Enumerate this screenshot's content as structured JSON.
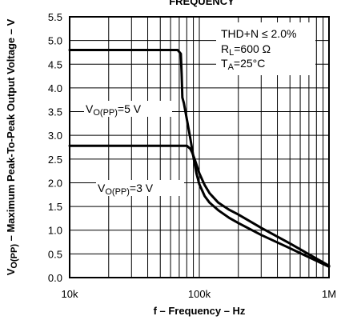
{
  "chart_data": {
    "type": "line",
    "title": "FREQUENCY",
    "xlabel": "f – Frequency – Hz",
    "ylabel_main": "V",
    "ylabel_sub": "O(PP)",
    "ylabel_rest": " – Maximum Peak-To-Peak Output Voltage – V",
    "x_scale": "log",
    "xlim": [
      10000,
      1000000
    ],
    "ylim": [
      0,
      5.5
    ],
    "x_ticks": [
      {
        "value": 10000,
        "label": "10k"
      },
      {
        "value": 100000,
        "label": "100k"
      },
      {
        "value": 1000000,
        "label": "1M"
      }
    ],
    "y_ticks": [
      {
        "value": 0.0,
        "label": "0.0"
      },
      {
        "value": 0.5,
        "label": "0.5"
      },
      {
        "value": 1.0,
        "label": "1.0"
      },
      {
        "value": 1.5,
        "label": "1.5"
      },
      {
        "value": 2.0,
        "label": "2.0"
      },
      {
        "value": 2.5,
        "label": "2.5"
      },
      {
        "value": 3.0,
        "label": "3.0"
      },
      {
        "value": 3.5,
        "label": "3.5"
      },
      {
        "value": 4.0,
        "label": "4.0"
      },
      {
        "value": 4.5,
        "label": "4.5"
      },
      {
        "value": 5.0,
        "label": "5.0"
      },
      {
        "value": 5.5,
        "label": "5.5"
      }
    ],
    "grid": true,
    "series": [
      {
        "name": "5 V",
        "label_main": "V",
        "label_sub": "O(PP)",
        "label_rest": "=5 V",
        "x": [
          10000,
          50000,
          68000,
          72000,
          73000,
          74000,
          76000,
          80000,
          85000,
          90000,
          95000,
          100000,
          110000,
          120000,
          140000,
          170000,
          200000,
          300000,
          500000,
          1000000
        ],
        "y": [
          4.8,
          4.8,
          4.8,
          4.72,
          4.3,
          3.8,
          3.68,
          3.35,
          2.95,
          2.55,
          2.2,
          1.97,
          1.72,
          1.58,
          1.42,
          1.26,
          1.15,
          0.9,
          0.62,
          0.23
        ]
      },
      {
        "name": "3 V",
        "label_main": "V",
        "label_sub": "O(PP)",
        "label_rest": "=3 V",
        "x": [
          10000,
          50000,
          80000,
          85000,
          88000,
          92000,
          96000,
          100000,
          110000,
          120000,
          140000,
          170000,
          200000,
          300000,
          500000,
          1000000
        ],
        "y": [
          2.78,
          2.78,
          2.78,
          2.72,
          2.64,
          2.5,
          2.35,
          2.2,
          1.95,
          1.78,
          1.58,
          1.43,
          1.33,
          1.05,
          0.72,
          0.25
        ]
      }
    ],
    "annotations": {
      "thd": "THD+N ≤ 2.0%",
      "rl_main": "R",
      "rl_sub": "L",
      "rl_rest": "=600 Ω",
      "ta_main": "T",
      "ta_sub": "A",
      "ta_rest": "=25°C"
    }
  }
}
